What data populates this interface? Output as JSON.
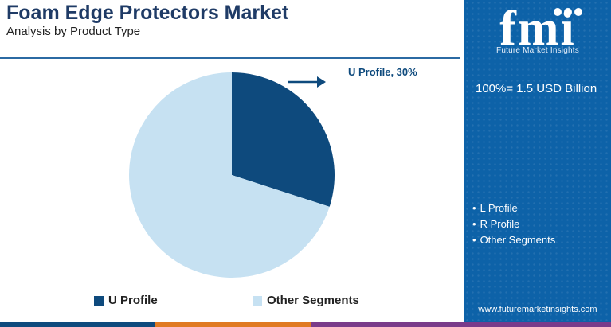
{
  "header": {
    "title": "Foam Edge Protectors Market",
    "subtitle": "Analysis by Product Type"
  },
  "sidebar": {
    "logo_letters": "fmi",
    "logo_tagline": "Future Market Insights",
    "total_label": "100%= 1.5 USD Billion",
    "segments": [
      "L Profile",
      "R Profile",
      "Other Segments"
    ],
    "website": "www.futuremarketinsights.com",
    "background_color": "#0d62a8"
  },
  "chart_data": {
    "type": "pie",
    "slices": [
      {
        "label": "U Profile",
        "value": 30,
        "color": "#0e4a7d"
      },
      {
        "label": "Other Segments",
        "value": 70,
        "color": "#c6e1f2"
      }
    ],
    "callout": "U Profile, 30%",
    "legend": [
      "U Profile",
      "Other Segments"
    ],
    "legend_position": "bottom"
  },
  "colors": {
    "title": "#1f3b66",
    "accent_bar": [
      "#0e4a7d",
      "#e07a22",
      "#7a3b8a"
    ]
  }
}
